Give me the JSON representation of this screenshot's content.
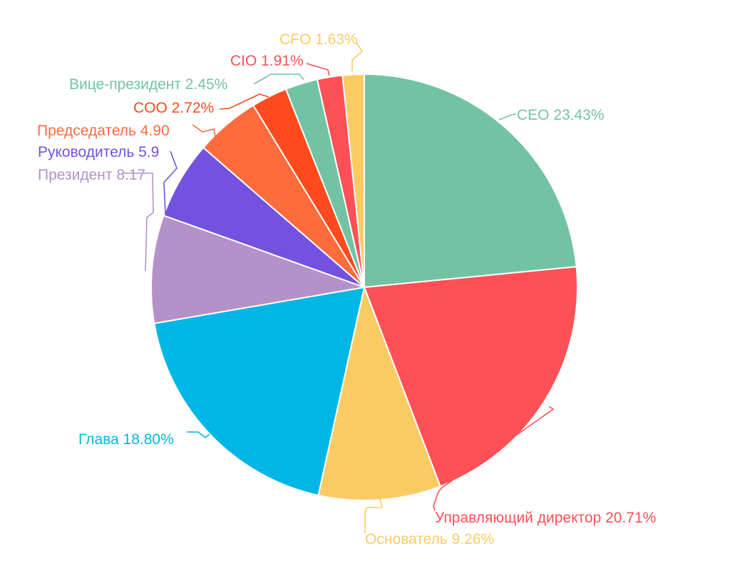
{
  "chart_data": {
    "type": "pie",
    "title": "",
    "slices": [
      {
        "label": "CEO",
        "value": 23.43,
        "text": "CEO 23.43%",
        "color": "#72C3A4"
      },
      {
        "label": "Управляющий директор",
        "value": 20.71,
        "text": "Управляющий директор 20.71%",
        "color": "#FE5056"
      },
      {
        "label": "Основатель",
        "value": 9.26,
        "text": "Основатель 9.26%",
        "color": "#FBCB63"
      },
      {
        "label": "Глава",
        "value": 18.8,
        "text": "Глава 18.80%",
        "color": "#00B6E4"
      },
      {
        "label": "Президент",
        "value": 8.17,
        "text": "Президент 8.17",
        "color": "#B491C8"
      },
      {
        "label": "Руководитель",
        "value": 5.9,
        "text": "Руководитель 5.9",
        "color": "#7452E0"
      },
      {
        "label": "Председатель",
        "value": 4.9,
        "text": "Председатель 4.90",
        "color": "#FE6B3C"
      },
      {
        "label": "COO",
        "value": 2.72,
        "text": "COO 2.72%",
        "color": "#FE4A1C"
      },
      {
        "label": "Вице-президент",
        "value": 2.45,
        "text": "Вице-президент 2.45%",
        "color": "#72C3A4"
      },
      {
        "label": "CIO",
        "value": 1.91,
        "text": "CIO 1.91%",
        "color": "#FE5056"
      },
      {
        "label": "CFO",
        "value": 1.63,
        "text": "CFO 1.63%",
        "color": "#FBCB63"
      }
    ]
  }
}
